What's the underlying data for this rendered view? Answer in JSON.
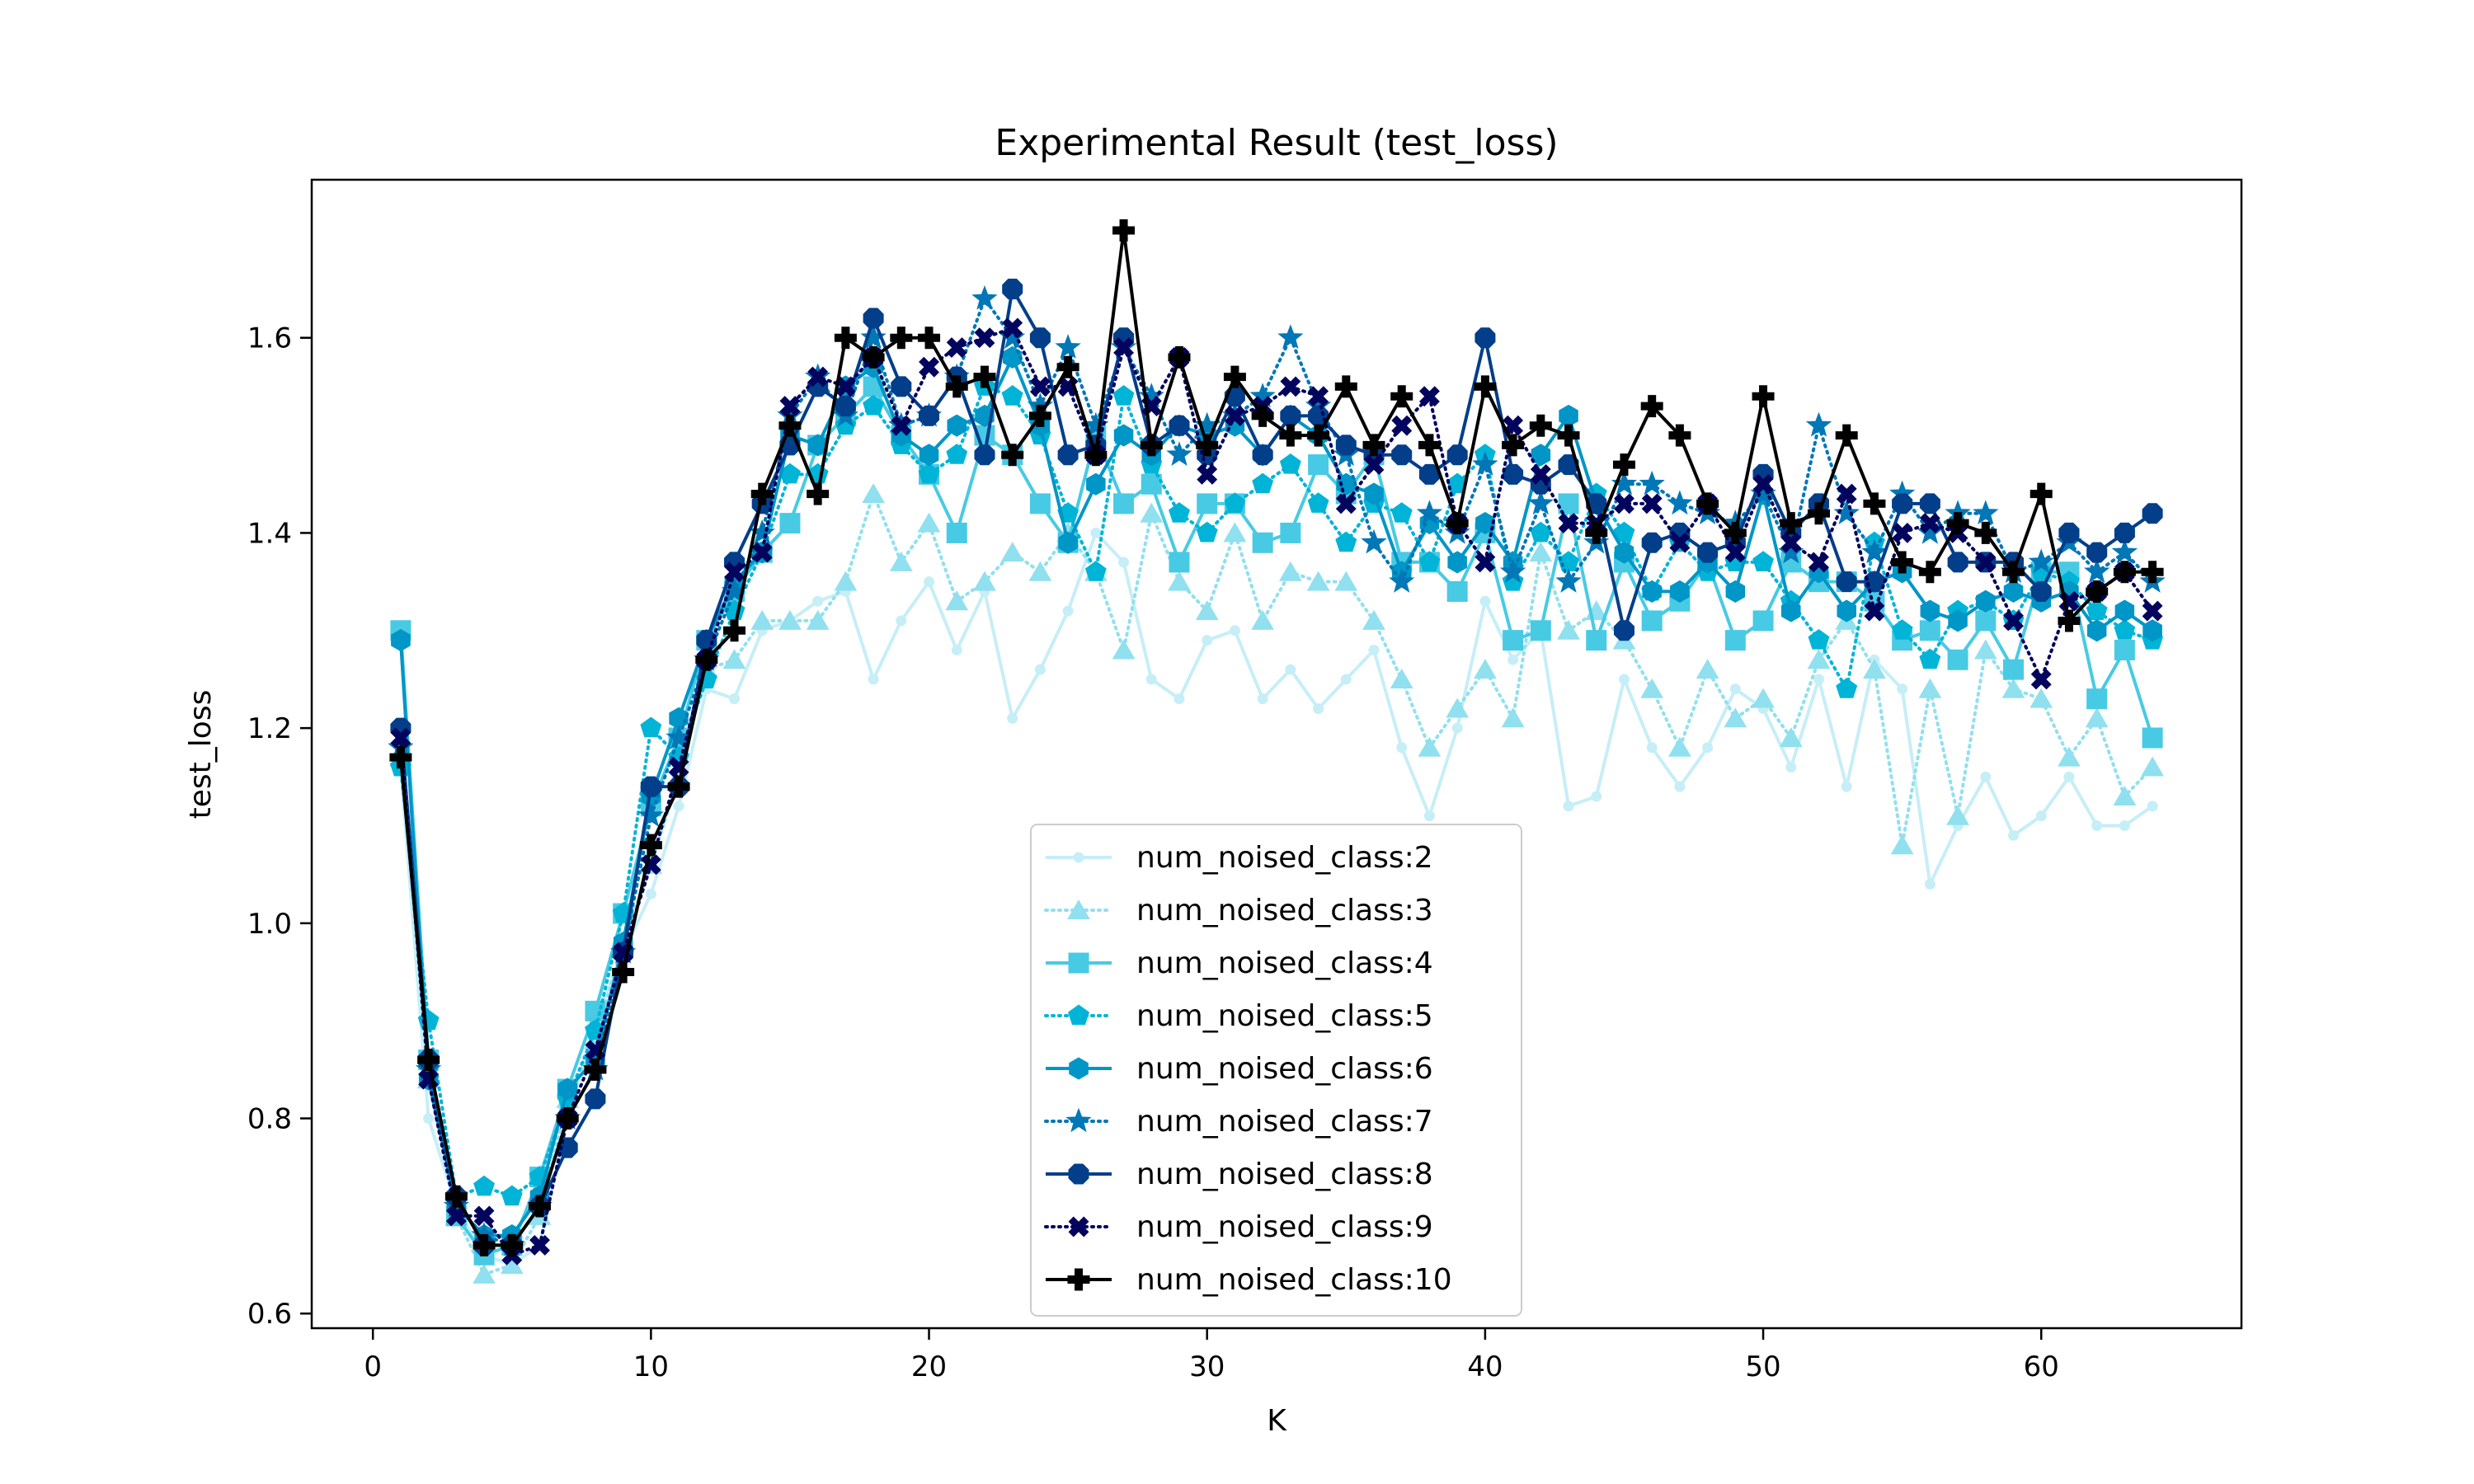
{
  "chart_data": {
    "type": "line",
    "title": "Experimental Result (test_loss)",
    "xlabel": "K",
    "ylabel": "test_loss",
    "xlim": [
      -2.2,
      67.2
    ],
    "ylim": [
      0.585,
      1.762
    ],
    "xticks": [
      0,
      10,
      20,
      30,
      40,
      50,
      60
    ],
    "yticks": [
      0.6,
      0.8,
      1.0,
      1.2,
      1.4,
      1.6
    ],
    "x": [
      1,
      2,
      3,
      4,
      5,
      6,
      7,
      8,
      9,
      10,
      11,
      12,
      13,
      14,
      15,
      16,
      17,
      18,
      19,
      20,
      21,
      22,
      23,
      24,
      25,
      26,
      27,
      28,
      29,
      30,
      31,
      32,
      33,
      34,
      35,
      36,
      37,
      38,
      39,
      40,
      41,
      42,
      43,
      44,
      45,
      46,
      47,
      48,
      49,
      50,
      51,
      52,
      53,
      54,
      55,
      56,
      57,
      58,
      59,
      60,
      61,
      62,
      63,
      64
    ],
    "grid": false,
    "legend_position": "lower center",
    "series": [
      {
        "name": "num_noised_class:2",
        "color": "#c6eef7",
        "linestyle": "solid",
        "marker": "point",
        "values": [
          1.16,
          0.8,
          0.71,
          0.66,
          0.65,
          0.67,
          0.8,
          0.9,
          0.97,
          1.03,
          1.12,
          1.24,
          1.23,
          1.3,
          1.31,
          1.33,
          1.34,
          1.25,
          1.31,
          1.35,
          1.28,
          1.34,
          1.21,
          1.26,
          1.32,
          1.4,
          1.37,
          1.25,
          1.23,
          1.29,
          1.3,
          1.23,
          1.26,
          1.22,
          1.25,
          1.28,
          1.18,
          1.11,
          1.2,
          1.33,
          1.27,
          1.3,
          1.12,
          1.13,
          1.25,
          1.18,
          1.14,
          1.18,
          1.24,
          1.22,
          1.16,
          1.25,
          1.14,
          1.27,
          1.24,
          1.04,
          1.1,
          1.15,
          1.09,
          1.11,
          1.15,
          1.1,
          1.1,
          1.12
        ]
      },
      {
        "name": "num_noised_class:3",
        "color": "#90e0ef",
        "linestyle": "dotted",
        "marker": "triangle",
        "values": [
          1.17,
          0.84,
          0.7,
          0.64,
          0.65,
          0.7,
          0.82,
          0.88,
          0.98,
          1.06,
          1.15,
          1.26,
          1.27,
          1.31,
          1.31,
          1.31,
          1.35,
          1.44,
          1.37,
          1.41,
          1.33,
          1.35,
          1.38,
          1.36,
          1.4,
          1.36,
          1.28,
          1.42,
          1.35,
          1.32,
          1.4,
          1.31,
          1.36,
          1.35,
          1.35,
          1.31,
          1.25,
          1.18,
          1.22,
          1.26,
          1.21,
          1.38,
          1.3,
          1.32,
          1.29,
          1.24,
          1.18,
          1.26,
          1.21,
          1.23,
          1.19,
          1.27,
          1.31,
          1.26,
          1.08,
          1.24,
          1.11,
          1.28,
          1.24,
          1.23,
          1.17,
          1.21,
          1.13,
          1.16
        ]
      },
      {
        "name": "num_noised_class:4",
        "color": "#48cae4",
        "linestyle": "solid",
        "marker": "square",
        "values": [
          1.3,
          0.86,
          0.7,
          0.66,
          0.67,
          0.74,
          0.83,
          0.91,
          1.01,
          1.12,
          1.19,
          1.29,
          1.34,
          1.38,
          1.41,
          1.49,
          1.52,
          1.55,
          1.5,
          1.46,
          1.4,
          1.5,
          1.48,
          1.43,
          1.39,
          1.5,
          1.43,
          1.45,
          1.37,
          1.43,
          1.43,
          1.39,
          1.4,
          1.47,
          1.44,
          1.48,
          1.37,
          1.37,
          1.34,
          1.4,
          1.29,
          1.3,
          1.43,
          1.29,
          1.37,
          1.31,
          1.33,
          1.37,
          1.29,
          1.31,
          1.37,
          1.35,
          1.35,
          1.33,
          1.29,
          1.3,
          1.27,
          1.31,
          1.26,
          1.36,
          1.36,
          1.23,
          1.28,
          1.19
        ]
      },
      {
        "name": "num_noised_class:5",
        "color": "#00b4d8",
        "linestyle": "dotted",
        "marker": "pentagon",
        "values": [
          1.16,
          0.9,
          0.72,
          0.73,
          0.72,
          0.74,
          0.82,
          0.89,
          1.01,
          1.2,
          1.17,
          1.25,
          1.32,
          1.38,
          1.46,
          1.46,
          1.51,
          1.53,
          1.49,
          1.46,
          1.48,
          1.55,
          1.54,
          1.5,
          1.42,
          1.36,
          1.54,
          1.47,
          1.42,
          1.4,
          1.43,
          1.45,
          1.47,
          1.43,
          1.39,
          1.43,
          1.42,
          1.37,
          1.45,
          1.48,
          1.35,
          1.4,
          1.37,
          1.44,
          1.4,
          1.34,
          1.39,
          1.36,
          1.37,
          1.37,
          1.33,
          1.29,
          1.24,
          1.39,
          1.3,
          1.27,
          1.32,
          1.33,
          1.31,
          1.36,
          1.35,
          1.32,
          1.3,
          1.29
        ]
      },
      {
        "name": "num_noised_class:6",
        "color": "#0096c7",
        "linestyle": "solid",
        "marker": "hexagon",
        "values": [
          1.29,
          0.84,
          0.71,
          0.68,
          0.68,
          0.72,
          0.83,
          0.86,
          0.98,
          1.13,
          1.21,
          1.29,
          1.35,
          1.38,
          1.5,
          1.49,
          1.55,
          1.57,
          1.5,
          1.48,
          1.51,
          1.52,
          1.58,
          1.51,
          1.39,
          1.45,
          1.5,
          1.48,
          1.51,
          1.5,
          1.51,
          1.48,
          1.52,
          1.5,
          1.45,
          1.44,
          1.36,
          1.41,
          1.37,
          1.41,
          1.37,
          1.48,
          1.52,
          1.43,
          1.38,
          1.34,
          1.34,
          1.37,
          1.34,
          1.44,
          1.32,
          1.36,
          1.32,
          1.35,
          1.36,
          1.32,
          1.31,
          1.33,
          1.34,
          1.33,
          1.34,
          1.3,
          1.32,
          1.3
        ]
      },
      {
        "name": "num_noised_class:7",
        "color": "#0077b6",
        "linestyle": "dotted",
        "marker": "star",
        "values": [
          1.18,
          0.85,
          0.71,
          0.68,
          0.67,
          0.71,
          0.8,
          0.85,
          0.97,
          1.11,
          1.19,
          1.27,
          1.34,
          1.4,
          1.52,
          1.56,
          1.52,
          1.6,
          1.51,
          1.52,
          1.56,
          1.64,
          1.6,
          1.53,
          1.59,
          1.51,
          1.59,
          1.54,
          1.48,
          1.51,
          1.52,
          1.54,
          1.6,
          1.53,
          1.48,
          1.39,
          1.35,
          1.42,
          1.4,
          1.47,
          1.36,
          1.43,
          1.35,
          1.39,
          1.45,
          1.45,
          1.43,
          1.42,
          1.41,
          1.44,
          1.38,
          1.51,
          1.42,
          1.38,
          1.44,
          1.4,
          1.42,
          1.42,
          1.36,
          1.37,
          1.39,
          1.36,
          1.38,
          1.35
        ]
      },
      {
        "name": "num_noised_class:8",
        "color": "#023e8a",
        "linestyle": "solid",
        "marker": "octagon",
        "values": [
          1.2,
          0.86,
          0.72,
          0.67,
          0.67,
          0.71,
          0.77,
          0.82,
          0.97,
          1.14,
          1.14,
          1.29,
          1.37,
          1.43,
          1.49,
          1.55,
          1.53,
          1.62,
          1.55,
          1.52,
          1.56,
          1.48,
          1.65,
          1.6,
          1.48,
          1.49,
          1.6,
          1.49,
          1.51,
          1.48,
          1.54,
          1.48,
          1.52,
          1.52,
          1.49,
          1.48,
          1.48,
          1.46,
          1.48,
          1.6,
          1.46,
          1.45,
          1.47,
          1.43,
          1.3,
          1.39,
          1.4,
          1.38,
          1.39,
          1.46,
          1.4,
          1.43,
          1.35,
          1.35,
          1.43,
          1.43,
          1.37,
          1.37,
          1.37,
          1.34,
          1.4,
          1.38,
          1.4,
          1.42
        ]
      },
      {
        "name": "num_noised_class:9",
        "color": "#03045e",
        "linestyle": "dotted",
        "marker": "x",
        "values": [
          1.19,
          0.84,
          0.7,
          0.7,
          0.66,
          0.67,
          0.8,
          0.87,
          0.97,
          1.06,
          1.16,
          1.27,
          1.36,
          1.38,
          1.53,
          1.56,
          1.55,
          1.58,
          1.51,
          1.57,
          1.59,
          1.6,
          1.61,
          1.55,
          1.55,
          1.48,
          1.59,
          1.53,
          1.58,
          1.46,
          1.52,
          1.53,
          1.55,
          1.54,
          1.43,
          1.47,
          1.51,
          1.54,
          1.41,
          1.37,
          1.51,
          1.46,
          1.41,
          1.41,
          1.43,
          1.43,
          1.39,
          1.43,
          1.38,
          1.45,
          1.39,
          1.37,
          1.44,
          1.32,
          1.4,
          1.41,
          1.4,
          1.37,
          1.31,
          1.25,
          1.33,
          1.34,
          1.36,
          1.32
        ]
      },
      {
        "name": "num_noised_class:10",
        "color": "#000000",
        "linestyle": "solid",
        "marker": "plus",
        "values": [
          1.17,
          0.86,
          0.72,
          0.67,
          0.67,
          0.71,
          0.8,
          0.85,
          0.95,
          1.08,
          1.14,
          1.27,
          1.3,
          1.44,
          1.51,
          1.44,
          1.6,
          1.58,
          1.6,
          1.6,
          1.55,
          1.56,
          1.48,
          1.52,
          1.57,
          1.48,
          1.71,
          1.49,
          1.58,
          1.49,
          1.56,
          1.52,
          1.5,
          1.5,
          1.55,
          1.49,
          1.54,
          1.49,
          1.41,
          1.55,
          1.49,
          1.51,
          1.5,
          1.4,
          1.47,
          1.53,
          1.5,
          1.43,
          1.4,
          1.54,
          1.41,
          1.42,
          1.5,
          1.43,
          1.37,
          1.36,
          1.41,
          1.4,
          1.36,
          1.44,
          1.31,
          1.34,
          1.36,
          1.36
        ]
      }
    ]
  }
}
